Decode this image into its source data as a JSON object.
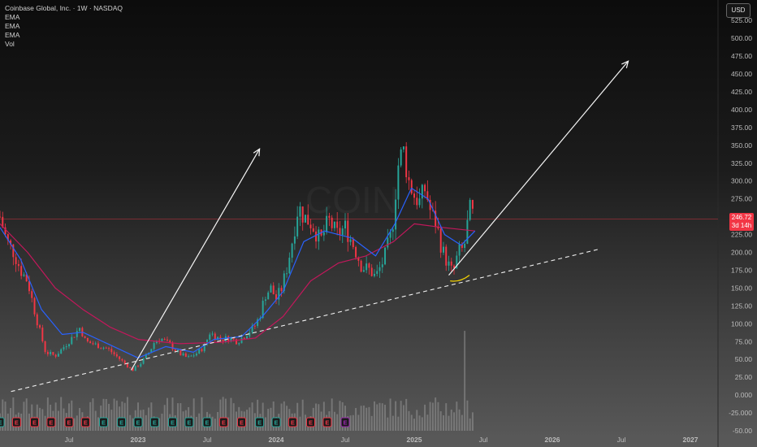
{
  "legend": {
    "symbol": "Coinbase Global, Inc. · 1W · NASDAQ",
    "ema1": "EMA",
    "ema2": "EMA",
    "ema3": "EMA",
    "vol": "Vol"
  },
  "currency_label": "USD",
  "watermark": "COIN",
  "last_price": {
    "value": "246.72",
    "countdown": "3d 14h"
  },
  "colors": {
    "up": "#26a69a",
    "down": "#f23645",
    "ema_fast": "#2962ff",
    "ema_slow": "#c2185b",
    "earnings_past_up": "#26a69a",
    "earnings_past_down": "#f23645",
    "earnings_future": "#9c27b0",
    "support_highlight": "#f5d300"
  },
  "chart_data": {
    "type": "candlestick",
    "title": "Coinbase Global, Inc. · 1W · NASDAQ",
    "ylim": [
      -50,
      540
    ],
    "y_ticks": [
      "525.00",
      "500.00",
      "475.00",
      "450.00",
      "425.00",
      "400.00",
      "375.00",
      "350.00",
      "325.00",
      "300.00",
      "275.00",
      "250.00",
      "225.00",
      "200.00",
      "175.00",
      "150.00",
      "125.00",
      "100.00",
      "75.00",
      "50.00",
      "25.00",
      "0.000",
      "-25.000",
      "-50.00"
    ],
    "x_ticks": [
      "Jul",
      "2023",
      "Jul",
      "2024",
      "Jul",
      "2025",
      "Jul",
      "2026",
      "Jul",
      "2027"
    ],
    "x_tick_years": [
      2022.5,
      2023.0,
      2023.5,
      2024.0,
      2024.5,
      2025.0,
      2025.5,
      2026.0,
      2026.5,
      2027.0
    ],
    "x_range": [
      2022.0,
      2027.2
    ],
    "close_path": [
      {
        "t": 2022.0,
        "p": 250
      },
      {
        "t": 2022.05,
        "p": 215
      },
      {
        "t": 2022.1,
        "p": 200
      },
      {
        "t": 2022.15,
        "p": 175
      },
      {
        "t": 2022.2,
        "p": 160
      },
      {
        "t": 2022.26,
        "p": 110
      },
      {
        "t": 2022.33,
        "p": 60
      },
      {
        "t": 2022.4,
        "p": 55
      },
      {
        "t": 2022.45,
        "p": 65
      },
      {
        "t": 2022.52,
        "p": 80
      },
      {
        "t": 2022.58,
        "p": 95
      },
      {
        "t": 2022.62,
        "p": 75
      },
      {
        "t": 2022.7,
        "p": 70
      },
      {
        "t": 2022.78,
        "p": 65
      },
      {
        "t": 2022.84,
        "p": 55
      },
      {
        "t": 2022.9,
        "p": 45
      },
      {
        "t": 2022.96,
        "p": 35
      },
      {
        "t": 2023.02,
        "p": 45
      },
      {
        "t": 2023.08,
        "p": 60
      },
      {
        "t": 2023.12,
        "p": 75
      },
      {
        "t": 2023.16,
        "p": 80
      },
      {
        "t": 2023.22,
        "p": 72
      },
      {
        "t": 2023.3,
        "p": 58
      },
      {
        "t": 2023.36,
        "p": 52
      },
      {
        "t": 2023.42,
        "p": 58
      },
      {
        "t": 2023.48,
        "p": 68
      },
      {
        "t": 2023.52,
        "p": 88
      },
      {
        "t": 2023.56,
        "p": 82
      },
      {
        "t": 2023.6,
        "p": 78
      },
      {
        "t": 2023.66,
        "p": 80
      },
      {
        "t": 2023.72,
        "p": 75
      },
      {
        "t": 2023.78,
        "p": 85
      },
      {
        "t": 2023.84,
        "p": 95
      },
      {
        "t": 2023.88,
        "p": 110
      },
      {
        "t": 2023.92,
        "p": 140
      },
      {
        "t": 2023.96,
        "p": 150
      },
      {
        "t": 2024.0,
        "p": 135
      },
      {
        "t": 2024.04,
        "p": 150
      },
      {
        "t": 2024.08,
        "p": 180
      },
      {
        "t": 2024.12,
        "p": 220
      },
      {
        "t": 2024.16,
        "p": 265
      },
      {
        "t": 2024.2,
        "p": 250
      },
      {
        "t": 2024.26,
        "p": 240
      },
      {
        "t": 2024.32,
        "p": 215
      },
      {
        "t": 2024.38,
        "p": 245
      },
      {
        "t": 2024.44,
        "p": 225
      },
      {
        "t": 2024.5,
        "p": 235
      },
      {
        "t": 2024.56,
        "p": 210
      },
      {
        "t": 2024.62,
        "p": 180
      },
      {
        "t": 2024.68,
        "p": 175
      },
      {
        "t": 2024.72,
        "p": 165
      },
      {
        "t": 2024.78,
        "p": 190
      },
      {
        "t": 2024.84,
        "p": 230
      },
      {
        "t": 2024.88,
        "p": 320
      },
      {
        "t": 2024.92,
        "p": 345
      },
      {
        "t": 2024.96,
        "p": 300
      },
      {
        "t": 2025.0,
        "p": 280
      },
      {
        "t": 2025.04,
        "p": 270
      },
      {
        "t": 2025.08,
        "p": 290
      },
      {
        "t": 2025.12,
        "p": 255
      },
      {
        "t": 2025.16,
        "p": 240
      },
      {
        "t": 2025.2,
        "p": 205
      },
      {
        "t": 2025.24,
        "p": 185
      },
      {
        "t": 2025.28,
        "p": 170
      },
      {
        "t": 2025.32,
        "p": 200
      },
      {
        "t": 2025.36,
        "p": 205
      },
      {
        "t": 2025.4,
        "p": 260
      },
      {
        "t": 2025.44,
        "p": 246.72
      }
    ],
    "ema_fast_path": [
      {
        "t": 2022.0,
        "p": 235
      },
      {
        "t": 2022.15,
        "p": 190
      },
      {
        "t": 2022.3,
        "p": 120
      },
      {
        "t": 2022.45,
        "p": 85
      },
      {
        "t": 2022.6,
        "p": 88
      },
      {
        "t": 2022.8,
        "p": 70
      },
      {
        "t": 2023.0,
        "p": 52
      },
      {
        "t": 2023.2,
        "p": 68
      },
      {
        "t": 2023.4,
        "p": 60
      },
      {
        "t": 2023.55,
        "p": 78
      },
      {
        "t": 2023.75,
        "p": 82
      },
      {
        "t": 2023.9,
        "p": 110
      },
      {
        "t": 2024.05,
        "p": 145
      },
      {
        "t": 2024.2,
        "p": 215
      },
      {
        "t": 2024.35,
        "p": 230
      },
      {
        "t": 2024.55,
        "p": 220
      },
      {
        "t": 2024.72,
        "p": 195
      },
      {
        "t": 2024.86,
        "p": 240
      },
      {
        "t": 2024.98,
        "p": 290
      },
      {
        "t": 2025.1,
        "p": 275
      },
      {
        "t": 2025.22,
        "p": 225
      },
      {
        "t": 2025.34,
        "p": 210
      },
      {
        "t": 2025.44,
        "p": 230
      }
    ],
    "ema_slow_path": [
      {
        "t": 2022.0,
        "p": 240
      },
      {
        "t": 2022.2,
        "p": 200
      },
      {
        "t": 2022.4,
        "p": 150
      },
      {
        "t": 2022.6,
        "p": 120
      },
      {
        "t": 2022.8,
        "p": 95
      },
      {
        "t": 2023.0,
        "p": 78
      },
      {
        "t": 2023.3,
        "p": 72
      },
      {
        "t": 2023.6,
        "p": 74
      },
      {
        "t": 2023.85,
        "p": 80
      },
      {
        "t": 2024.05,
        "p": 110
      },
      {
        "t": 2024.25,
        "p": 160
      },
      {
        "t": 2024.45,
        "p": 185
      },
      {
        "t": 2024.65,
        "p": 195
      },
      {
        "t": 2024.85,
        "p": 215
      },
      {
        "t": 2025.0,
        "p": 240
      },
      {
        "t": 2025.2,
        "p": 235
      },
      {
        "t": 2025.44,
        "p": 230
      }
    ],
    "support_trendline": {
      "start": {
        "t": 2022.08,
        "p": 5
      },
      "end": {
        "t": 2026.35,
        "p": 205
      }
    },
    "projection_arrows": [
      {
        "start": {
          "t": 2022.95,
          "p": 35
        },
        "end": {
          "t": 2023.88,
          "p": 345
        }
      },
      {
        "start": {
          "t": 2025.25,
          "p": 168
        },
        "end": {
          "t": 2026.55,
          "p": 468
        }
      }
    ],
    "volume_scale_max": 100,
    "volume_spike": {
      "t": 2025.37,
      "v": 100
    },
    "earnings_markers": [
      {
        "t": 2022.0,
        "kind": "past_up"
      },
      {
        "t": 2022.12,
        "kind": "past_down"
      },
      {
        "t": 2022.25,
        "kind": "past_down"
      },
      {
        "t": 2022.37,
        "kind": "past_down"
      },
      {
        "t": 2022.5,
        "kind": "past_down"
      },
      {
        "t": 2022.62,
        "kind": "past_down"
      },
      {
        "t": 2022.75,
        "kind": "past_up"
      },
      {
        "t": 2022.88,
        "kind": "past_up"
      },
      {
        "t": 2023.0,
        "kind": "past_up"
      },
      {
        "t": 2023.12,
        "kind": "past_up"
      },
      {
        "t": 2023.25,
        "kind": "past_up"
      },
      {
        "t": 2023.37,
        "kind": "past_up"
      },
      {
        "t": 2023.5,
        "kind": "past_up"
      },
      {
        "t": 2023.62,
        "kind": "past_down"
      },
      {
        "t": 2023.75,
        "kind": "past_down"
      },
      {
        "t": 2023.88,
        "kind": "past_up"
      },
      {
        "t": 2024.0,
        "kind": "past_up"
      },
      {
        "t": 2024.12,
        "kind": "past_down"
      },
      {
        "t": 2024.25,
        "kind": "past_down"
      },
      {
        "t": 2024.37,
        "kind": "past_down"
      },
      {
        "t": 2024.5,
        "kind": "past_future"
      }
    ],
    "last_price_line": 246.72,
    "highlight_segment": {
      "start": {
        "t": 2025.26,
        "p": 160
      },
      "end": {
        "t": 2025.4,
        "p": 168
      }
    }
  }
}
